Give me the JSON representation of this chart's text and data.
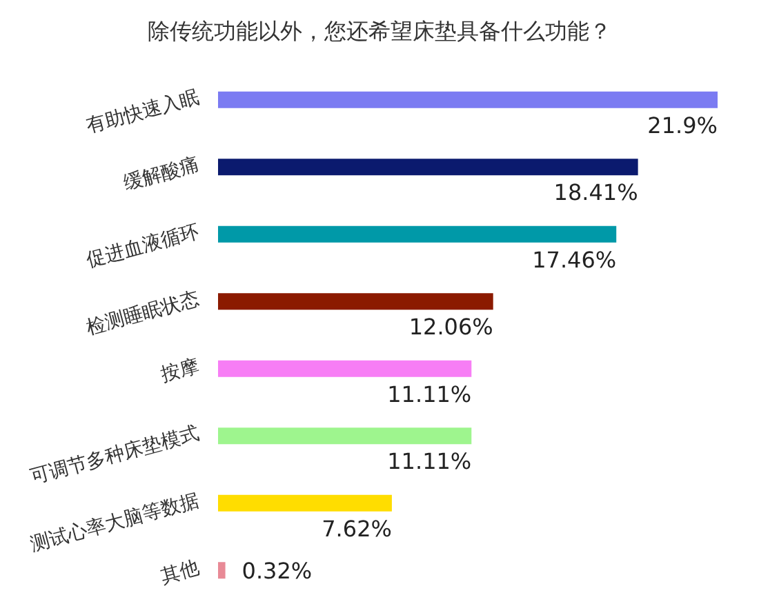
{
  "chart_data": {
    "type": "bar",
    "orientation": "horizontal",
    "title": "除传统功能以外，您还希望床垫具备什么功能？",
    "categories": [
      "有助快速入眠",
      "缓解酸痛",
      "促进血液循环",
      "检测睡眠状态",
      "按摩",
      "可调节多种床垫模式",
      "测试心率大脑等数据",
      "其他"
    ],
    "values": [
      21.9,
      18.41,
      17.46,
      12.06,
      11.11,
      11.11,
      7.62,
      0.32
    ],
    "colors": [
      "#7b7bf2",
      "#0b1a6e",
      "#0099a8",
      "#8b1a00",
      "#f77ef5",
      "#9ef58e",
      "#ffdd00",
      "#e88a96"
    ],
    "value_labels": [
      "21.9%",
      "18.41%",
      "17.46%",
      "12.06%",
      "11.11%",
      "11.11%",
      "7.62%",
      "0.32%"
    ]
  }
}
